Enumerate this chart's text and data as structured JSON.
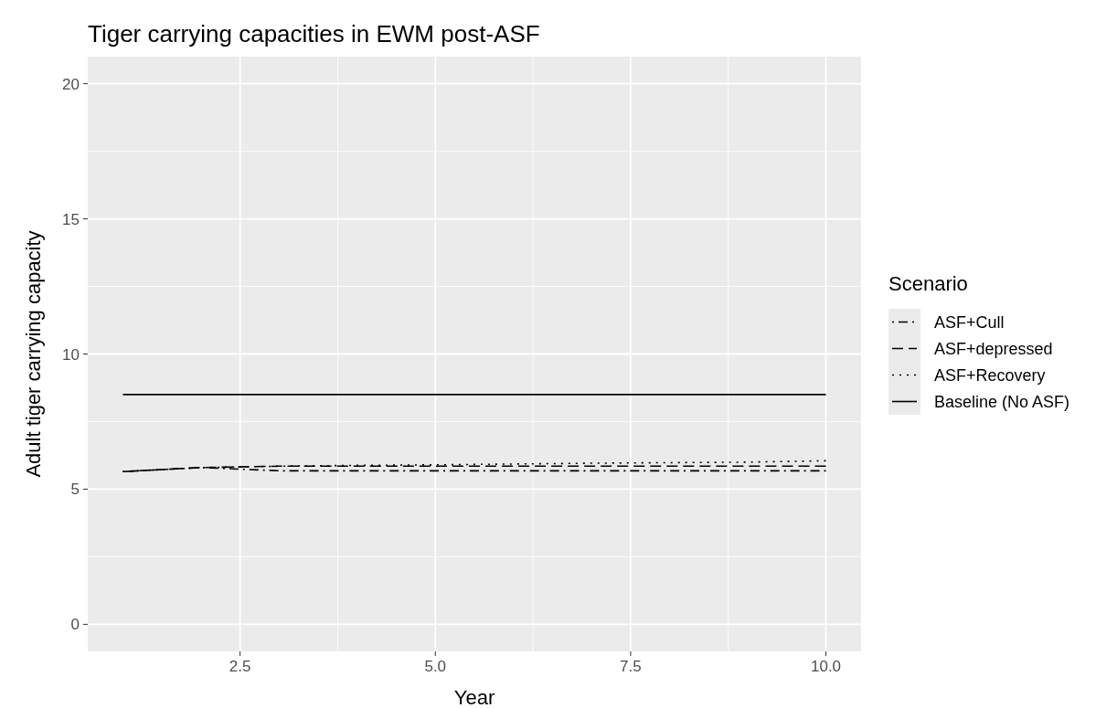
{
  "chart_data": {
    "type": "line",
    "title": "Tiger carrying capacities in EWM post-ASF",
    "xlabel": "Year",
    "ylabel": "Adult tiger carrying capacity",
    "legend_title": "Scenario",
    "x": [
      1,
      2,
      3,
      4,
      5,
      6,
      7,
      8,
      9,
      10
    ],
    "series": [
      {
        "name": "ASF+Cull",
        "color": "#000000",
        "line_style": "dashdot",
        "values": [
          5.65,
          5.8,
          5.68,
          5.68,
          5.68,
          5.68,
          5.68,
          5.68,
          5.68,
          5.68
        ]
      },
      {
        "name": "ASF+depressed",
        "color": "#000000",
        "line_style": "dashed",
        "values": [
          5.65,
          5.8,
          5.85,
          5.85,
          5.85,
          5.85,
          5.85,
          5.85,
          5.85,
          5.85
        ]
      },
      {
        "name": "ASF+Recovery",
        "color": "#000000",
        "line_style": "dotted",
        "values": [
          5.65,
          5.8,
          5.85,
          5.88,
          5.9,
          5.93,
          5.96,
          5.98,
          6.0,
          6.05
        ]
      },
      {
        "name": "Baseline (No ASF)",
        "color": "#000000",
        "line_style": "solid",
        "values": [
          8.5,
          8.5,
          8.5,
          8.5,
          8.5,
          8.5,
          8.5,
          8.5,
          8.5,
          8.5
        ]
      }
    ],
    "xlim": [
      0.55,
      10.45
    ],
    "xticks": [
      {
        "value": 2.5,
        "label": "2.5"
      },
      {
        "value": 5,
        "label": "5.0"
      },
      {
        "value": 7.5,
        "label": "7.5"
      },
      {
        "value": 10,
        "label": "10.0"
      }
    ],
    "ylim": [
      -1,
      21
    ],
    "yticks": [
      0,
      5,
      10,
      15,
      20
    ],
    "grid": true,
    "legend": "right"
  }
}
